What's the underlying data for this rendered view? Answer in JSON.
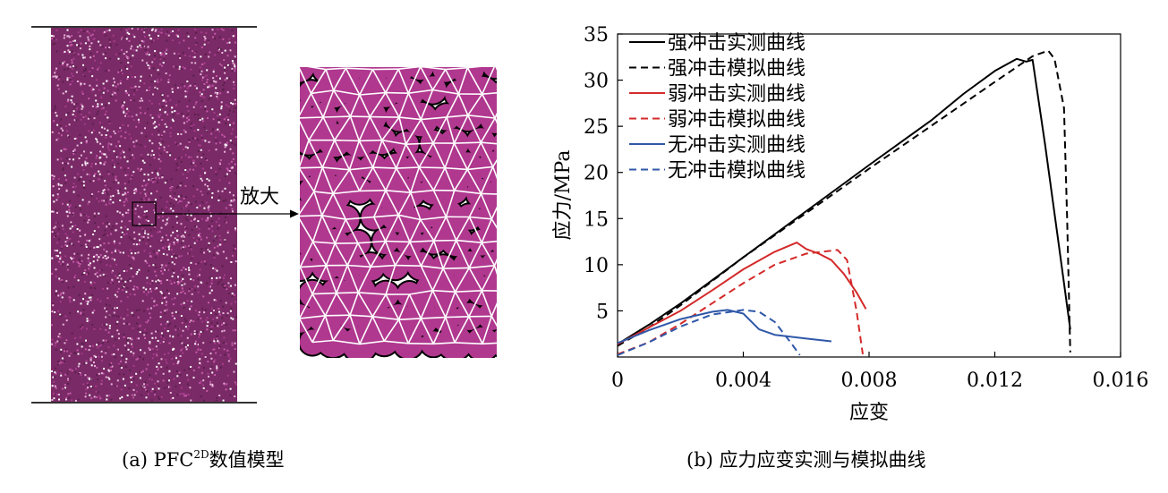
{
  "panel_a": {
    "zoom_label": "放大",
    "caption_prefix": "(a)  PFC",
    "caption_sup": "2D",
    "caption_suffix": "数值模型",
    "particle_color": "#b0388f",
    "bond_color": "#ffffff",
    "outline_color": "#000000"
  },
  "panel_b": {
    "caption": "(b)  应力应变实测与模拟曲线"
  },
  "chart_data": {
    "type": "line",
    "title": "",
    "xlabel": "应变",
    "ylabel": "应力/MPa",
    "xlim": [
      0,
      0.016
    ],
    "ylim": [
      0,
      35
    ],
    "xticks": [
      0,
      0.004,
      0.008,
      0.012,
      0.016
    ],
    "xtick_labels": [
      "0",
      "0.004",
      "0.008",
      "0.012",
      "0.016"
    ],
    "yticks": [
      5,
      10,
      15,
      20,
      25,
      30,
      35
    ],
    "ytick_labels": [
      "5",
      "10",
      "15",
      "20",
      "25",
      "30",
      "35"
    ],
    "grid": false,
    "legend_position": "top-left",
    "series": [
      {
        "name": "强冲击实测曲线",
        "color": "#000000",
        "dash": "solid",
        "x": [
          0,
          0.001,
          0.002,
          0.004,
          0.006,
          0.008,
          0.01,
          0.011,
          0.012,
          0.0127,
          0.013,
          0.0132,
          0.0136,
          0.014,
          0.0144
        ],
        "y": [
          1.4,
          3.5,
          5.8,
          10.8,
          15.8,
          20.8,
          25.7,
          28.5,
          31.0,
          32.3,
          32.0,
          32.2,
          23.0,
          13.0,
          3.0
        ]
      },
      {
        "name": "强冲击模拟曲线",
        "color": "#000000",
        "dash": "dashed",
        "x": [
          0,
          0.001,
          0.002,
          0.004,
          0.006,
          0.008,
          0.01,
          0.012,
          0.0132,
          0.0137,
          0.0139,
          0.0142,
          0.0143,
          0.0144
        ],
        "y": [
          1.2,
          3.2,
          5.6,
          10.8,
          15.6,
          20.4,
          25.1,
          29.8,
          32.6,
          33.2,
          32.3,
          27.0,
          15.0,
          0.5
        ]
      },
      {
        "name": "弱冲击实测曲线",
        "color": "#d42a2a",
        "dash": "solid",
        "x": [
          0,
          0.001,
          0.002,
          0.003,
          0.004,
          0.005,
          0.0057,
          0.006,
          0.0064,
          0.0068,
          0.0072,
          0.0076,
          0.0079
        ],
        "y": [
          1.4,
          3.2,
          5.0,
          7.2,
          9.5,
          11.4,
          12.4,
          11.7,
          11.2,
          10.5,
          9.0,
          7.0,
          5.2
        ]
      },
      {
        "name": "弱冲击模拟曲线",
        "color": "#d42a2a",
        "dash": "dashed",
        "x": [
          0,
          0.001,
          0.002,
          0.003,
          0.004,
          0.005,
          0.006,
          0.007,
          0.0073,
          0.0076,
          0.0078
        ],
        "y": [
          0.3,
          1.6,
          3.6,
          5.8,
          8.0,
          10.0,
          11.2,
          11.6,
          10.5,
          5.0,
          0.3
        ]
      },
      {
        "name": "无冲击实测曲线",
        "color": "#2f58a8",
        "dash": "solid",
        "x": [
          0,
          0.001,
          0.002,
          0.003,
          0.0035,
          0.004,
          0.0045,
          0.005,
          0.006,
          0.0068
        ],
        "y": [
          1.5,
          2.9,
          4.1,
          4.9,
          5.1,
          4.7,
          3.0,
          2.4,
          2.0,
          1.7
        ]
      },
      {
        "name": "无冲击模拟曲线",
        "color": "#2f58a8",
        "dash": "dashed",
        "x": [
          0,
          0.001,
          0.002,
          0.003,
          0.004,
          0.0045,
          0.005,
          0.0055,
          0.0058
        ],
        "y": [
          0.2,
          1.6,
          3.3,
          4.6,
          5.1,
          4.9,
          3.8,
          1.6,
          0.2
        ]
      }
    ]
  }
}
